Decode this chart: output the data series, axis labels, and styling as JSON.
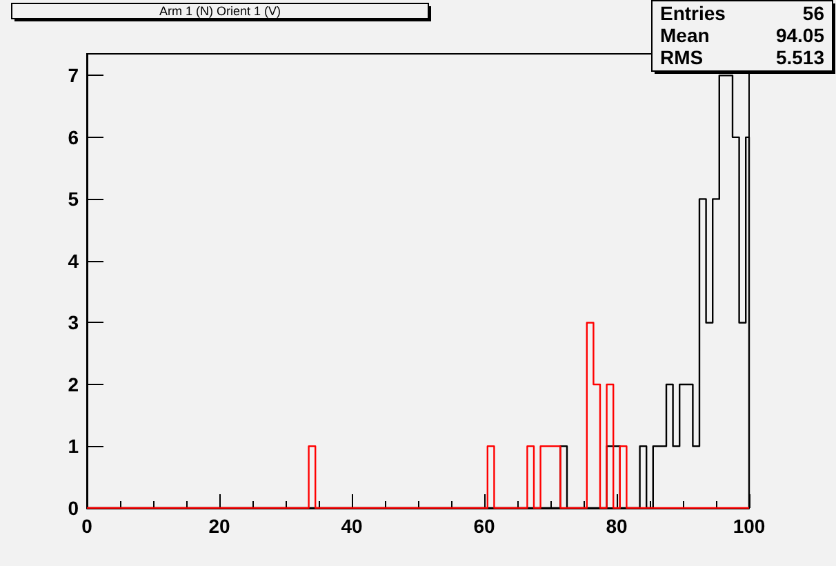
{
  "chart_data": {
    "type": "histogram",
    "title": "Arm 1 (N) Orient 1 (V)",
    "annotations": [
      "Entries",
      "56",
      "Mean",
      "94.05",
      "RMS",
      "5.513"
    ],
    "bins": [
      0,
      33.5,
      34.5,
      60.5,
      61.5,
      62.5,
      63.5,
      64.5,
      65.5,
      66.5,
      67.5,
      68.5,
      69.5,
      70.5,
      71.5,
      72.5,
      73.5,
      74.5,
      75.5,
      76.5,
      77.5,
      78.5,
      79.5,
      80.5,
      81.5,
      82.5,
      83.5,
      84.5,
      85.5,
      86.5,
      87.5,
      88.5,
      89.5,
      90.5,
      91.5,
      92.5,
      93.5,
      94.5,
      95.5,
      96.5,
      97.5,
      98.5,
      99.5,
      100
    ],
    "series": [
      {
        "color": "#000000",
        "values": [
          0,
          0,
          0,
          0,
          0,
          0,
          0,
          0,
          0,
          0,
          0,
          0,
          0,
          0,
          1,
          0,
          0,
          0,
          0,
          0,
          0,
          1,
          1,
          0,
          0,
          0,
          1,
          0,
          1,
          1,
          2,
          1,
          2,
          2,
          1,
          5,
          3,
          5,
          7,
          7,
          6,
          3,
          6
        ]
      },
      {
        "color": "#ff0000",
        "values": [
          0,
          1,
          0,
          1,
          0,
          0,
          0,
          0,
          0,
          1,
          0,
          1,
          1,
          1,
          0,
          0,
          0,
          0,
          3,
          2,
          0,
          2,
          0,
          1,
          0,
          0,
          0,
          0,
          0,
          0,
          0,
          0,
          0,
          0,
          0,
          0,
          0,
          0,
          0,
          0,
          0,
          0,
          0
        ]
      }
    ],
    "xlim": [
      0,
      100
    ],
    "xticks": [
      0,
      20,
      40,
      60,
      80,
      100
    ],
    "ylim": [
      0,
      7.35
    ],
    "yticks": [
      0,
      1,
      2,
      3,
      4,
      5,
      6,
      7
    ],
    "grid": false
  }
}
